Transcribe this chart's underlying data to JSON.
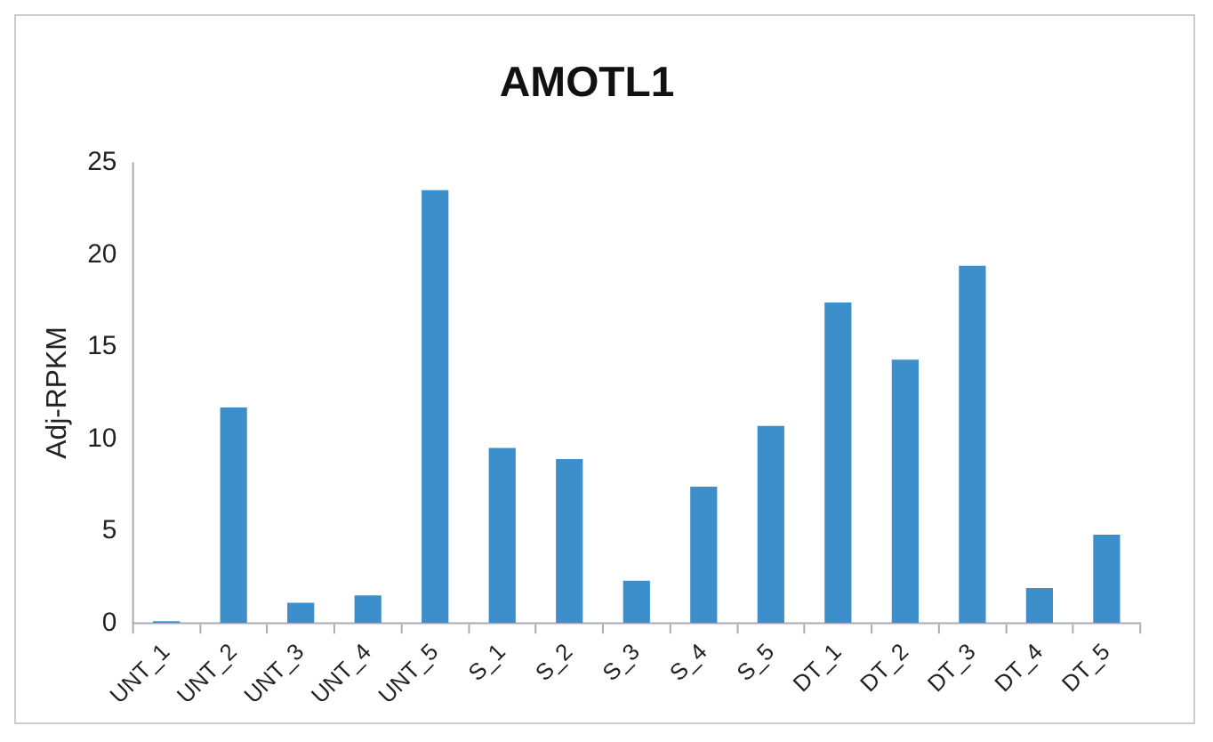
{
  "chart_data": {
    "type": "bar",
    "title": "AMOTL1",
    "ylabel": "Adj-RPKM",
    "categories": [
      "UNT_1",
      "UNT_2",
      "UNT_3",
      "UNT_4",
      "UNT_5",
      "S_1",
      "S_2",
      "S_3",
      "S_4",
      "S_5",
      "DT_1",
      "DT_2",
      "DT_3",
      "DT_4",
      "DT_5"
    ],
    "values": [
      0.1,
      11.7,
      1.1,
      1.5,
      23.5,
      9.5,
      8.9,
      2.3,
      7.4,
      10.7,
      17.4,
      14.3,
      19.4,
      1.9,
      4.8
    ],
    "color": "#3d8fcc",
    "ylim": [
      0,
      25
    ],
    "yticks": [
      0,
      5,
      10,
      15,
      20,
      25
    ],
    "grid": false,
    "legend": false
  }
}
